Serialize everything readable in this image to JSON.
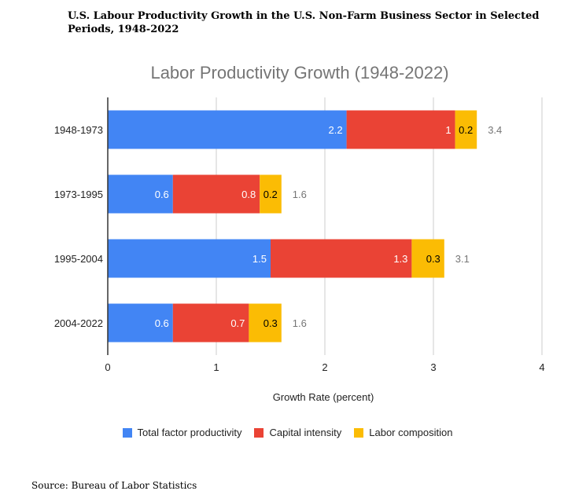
{
  "header": {
    "title": "U.S. Labour Productivity Growth in the U.S. Non-Farm Business Sector in Selected Periods, 1948-2022"
  },
  "footer": {
    "source": "Source: Bureau of Labor Statistics"
  },
  "chart_data": {
    "type": "bar",
    "orientation": "horizontal",
    "stacked": true,
    "title": "Labor Productivity Growth (1948-2022)",
    "xlabel": "Growth Rate (percent)",
    "ylabel": "",
    "xlim": [
      0,
      4
    ],
    "xticks": [
      0,
      1,
      2,
      3,
      4
    ],
    "grid": true,
    "legend_position": "bottom",
    "categories": [
      "1948-1973",
      "1973-1995",
      "1995-2004",
      "2004-2022"
    ],
    "series": [
      {
        "name": "Total factor productivity",
        "color": "#4285f4",
        "label_color": "#ffffff",
        "values": [
          2.2,
          0.6,
          1.5,
          0.6
        ]
      },
      {
        "name": "Capital intensity",
        "color": "#ea4335",
        "label_color": "#ffffff",
        "values": [
          1,
          0.8,
          1.3,
          0.7
        ]
      },
      {
        "name": "Labor composition",
        "color": "#fbbc04",
        "label_color": "#000000",
        "values": [
          0.2,
          0.2,
          0.3,
          0.3
        ]
      }
    ],
    "totals": [
      3.4,
      1.6,
      3.1,
      1.6
    ],
    "colors": {
      "grid": "#cccccc",
      "axis": "#333333",
      "total_label": "#757575"
    }
  }
}
